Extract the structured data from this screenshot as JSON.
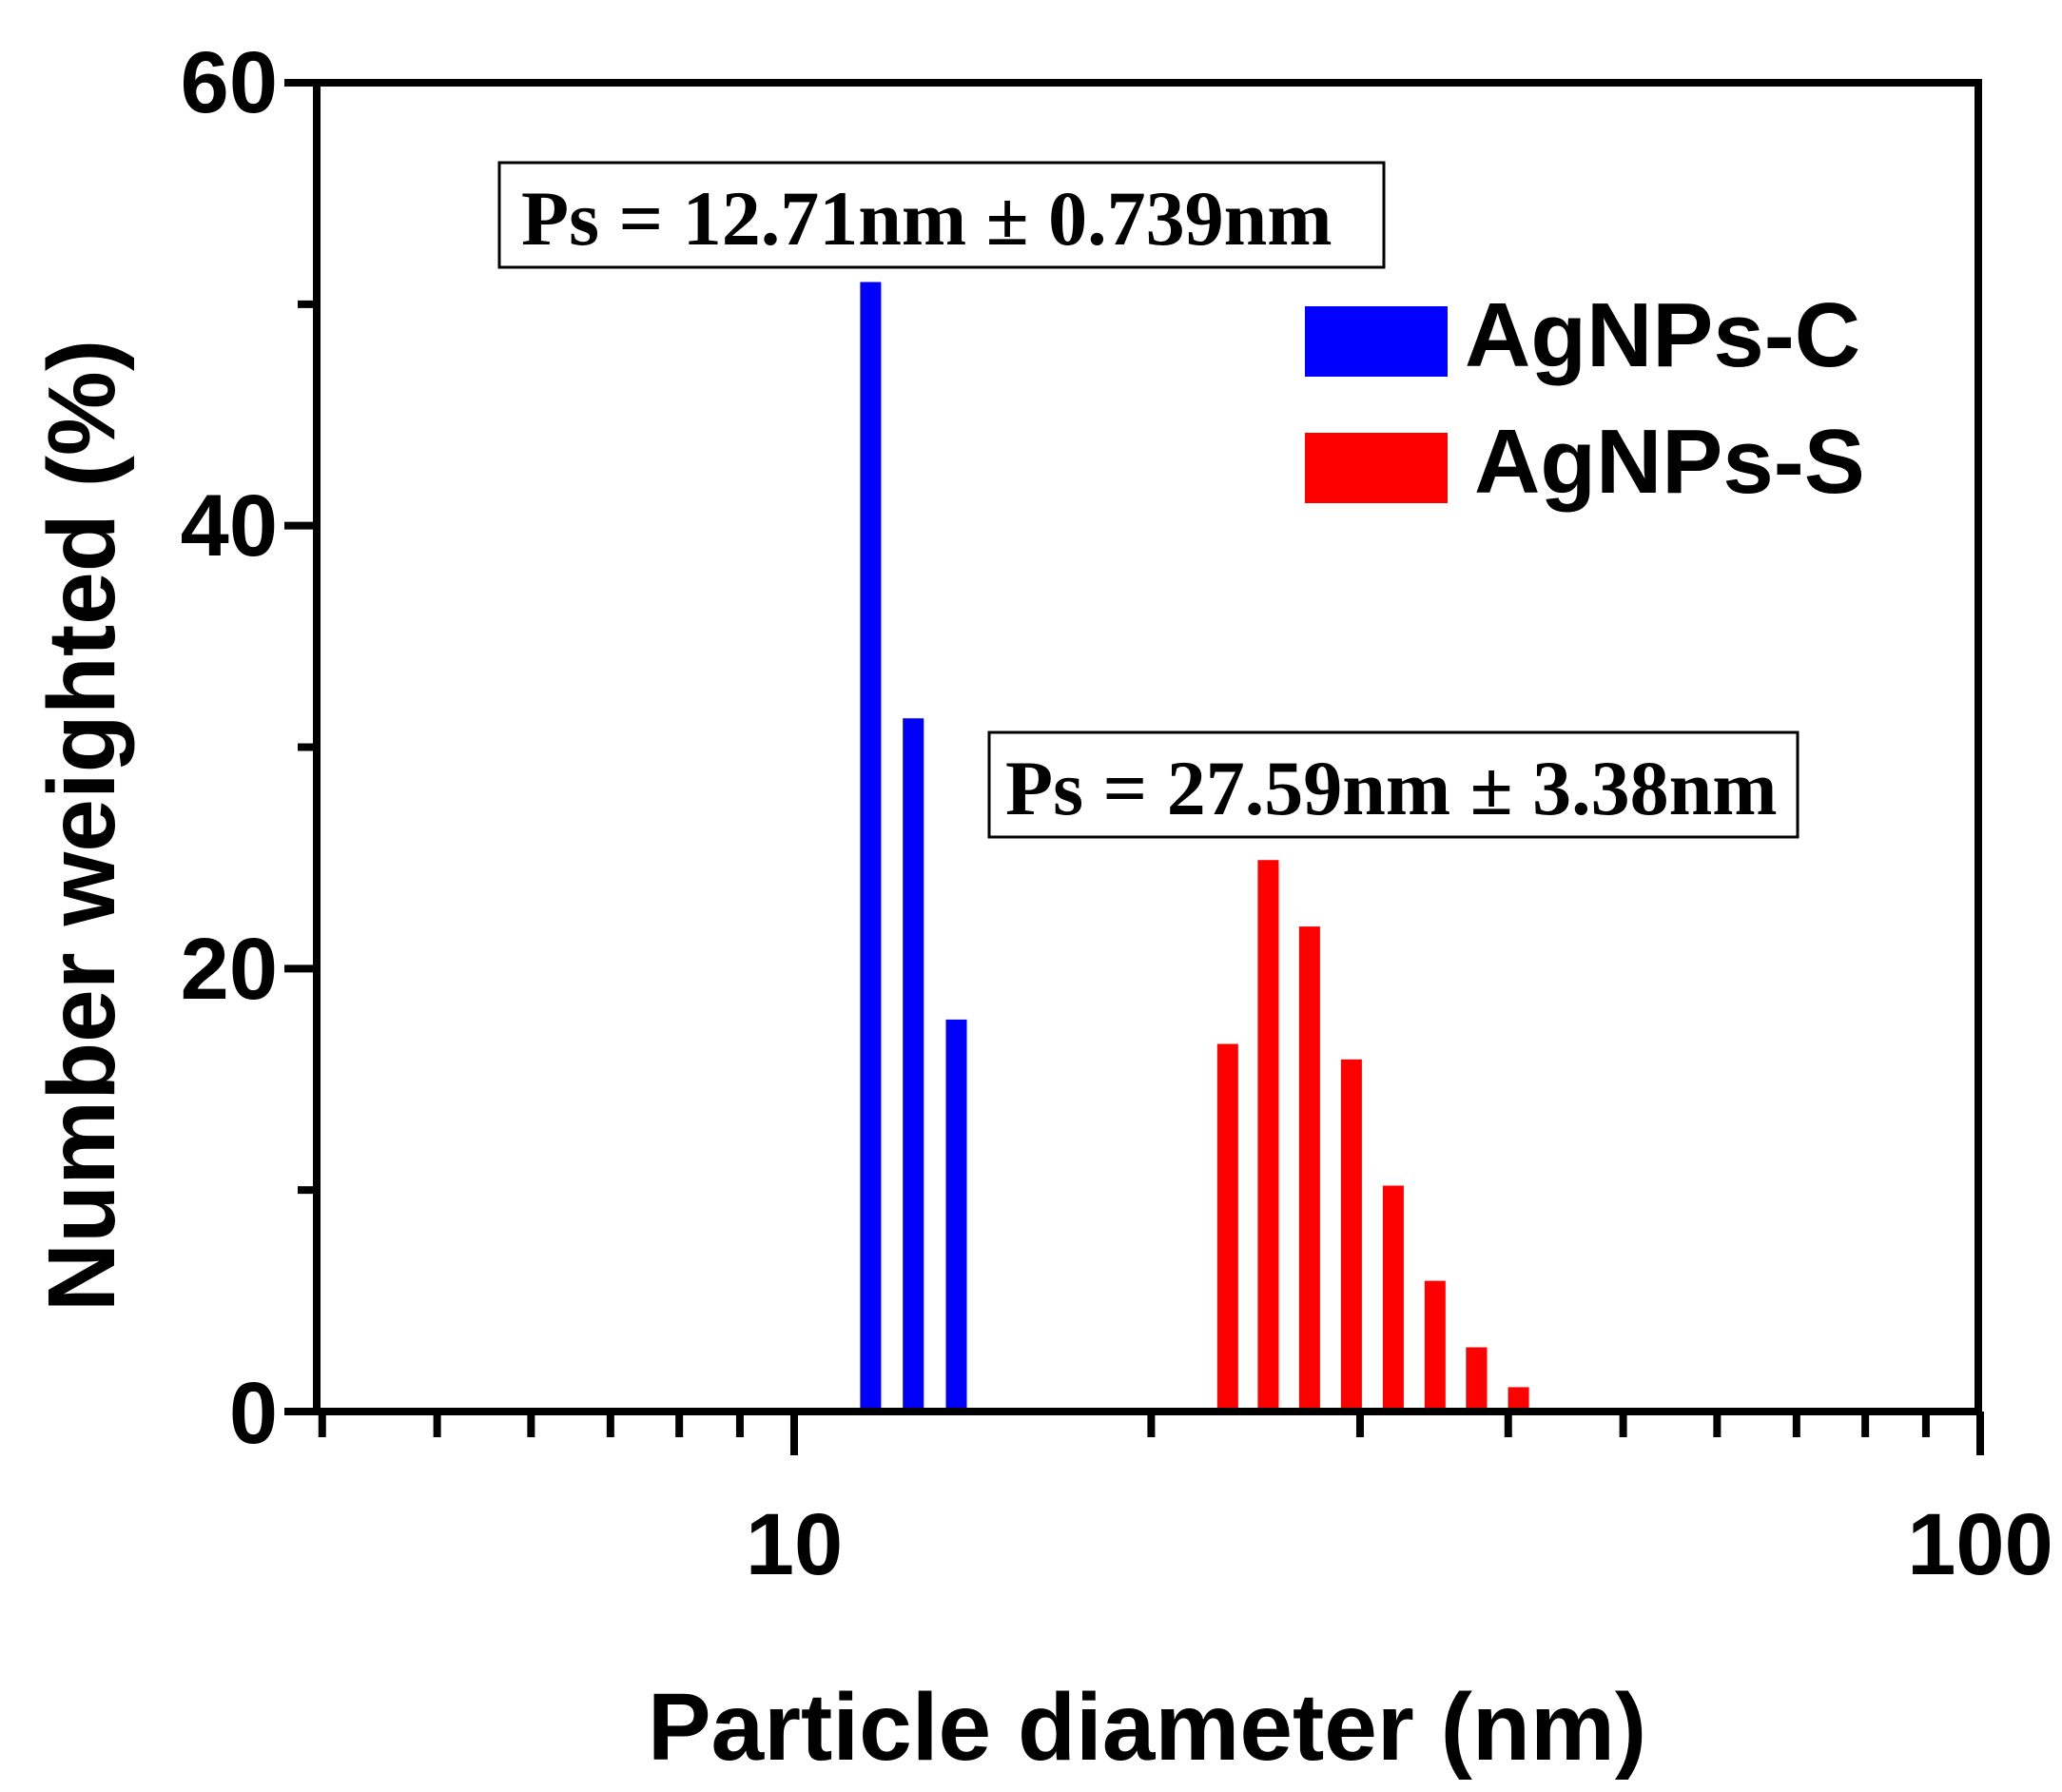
{
  "chart_data": {
    "type": "bar",
    "xscale": "log",
    "xlim": [
      4,
      100
    ],
    "ylim": [
      0,
      60
    ],
    "xlabel": "Particle diameter (nm)",
    "ylabel": "Number weighted (%)",
    "x_major_ticks": [
      10,
      100
    ],
    "x_minor_ticks": [
      4,
      5,
      6,
      7,
      8,
      9,
      20,
      30,
      40,
      50,
      60,
      70,
      80,
      90
    ],
    "y_major_ticks": [
      0,
      20,
      40,
      60
    ],
    "y_minor_ticks": [
      10,
      30,
      50
    ],
    "x_tick_labels": [
      "10",
      "100"
    ],
    "y_tick_labels": [
      "0",
      "20",
      "40",
      "60"
    ],
    "series": [
      {
        "name": "AgNPs-C",
        "color": "#0000ff",
        "x": [
          11.6,
          12.6,
          13.7
        ],
        "values": [
          51.0,
          31.3,
          17.7
        ]
      },
      {
        "name": "AgNPs-S",
        "color": "#ff0000",
        "x": [
          23.2,
          25.1,
          27.2,
          29.5,
          32.0,
          34.7,
          37.6,
          40.8
        ],
        "values": [
          16.6,
          24.9,
          21.9,
          15.9,
          10.2,
          5.9,
          2.9,
          1.1
        ]
      }
    ],
    "legend": [
      {
        "label": "AgNPs-C",
        "color": "#0000ff"
      },
      {
        "label": "AgNPs-S",
        "color": "#ff0000"
      }
    ],
    "legend_position": "top-right",
    "annotations": [
      {
        "text": "Ps = 12.71nm ± 0.739nm",
        "anchor": "above AgNPs-C bars"
      },
      {
        "text": "Ps = 27.59nm ± 3.38nm",
        "anchor": "above AgNPs-S bars"
      }
    ]
  }
}
